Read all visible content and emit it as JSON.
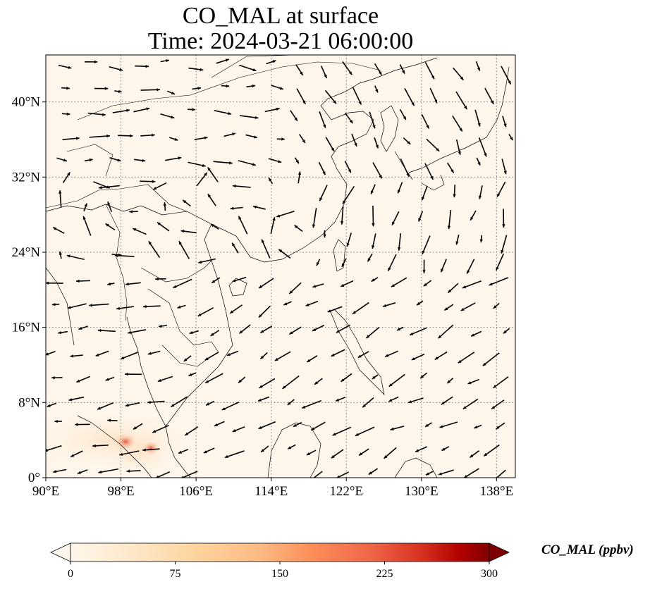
{
  "map": {
    "title_line1": "CO_MAL at surface",
    "title_line2": "Time: 2024-03-21 06:00:00",
    "lon_ticks": [
      "90°E",
      "98°E",
      "106°E",
      "114°E",
      "122°E",
      "130°E",
      "138°E"
    ],
    "lat_ticks": [
      "0°",
      "8°N",
      "16°N",
      "24°N",
      "32°N",
      "40°N"
    ],
    "extent": {
      "lon_min": 90,
      "lon_max": 140,
      "lat_min": 0,
      "lat_max": 45
    },
    "gridlines": "dotted",
    "background_color": "#fef6ea",
    "vector_color": "#000000",
    "colorbar": {
      "label": "CO_MAL (ppbv)",
      "ticks": [
        "0",
        "75",
        "150",
        "225",
        "300"
      ],
      "range": [
        0,
        300
      ],
      "colormap": "OrRd",
      "extend": "both"
    },
    "concentration_note_hotspots_lonlat": [
      [
        98.5,
        3.6
      ],
      [
        101.2,
        3.1
      ]
    ]
  }
}
